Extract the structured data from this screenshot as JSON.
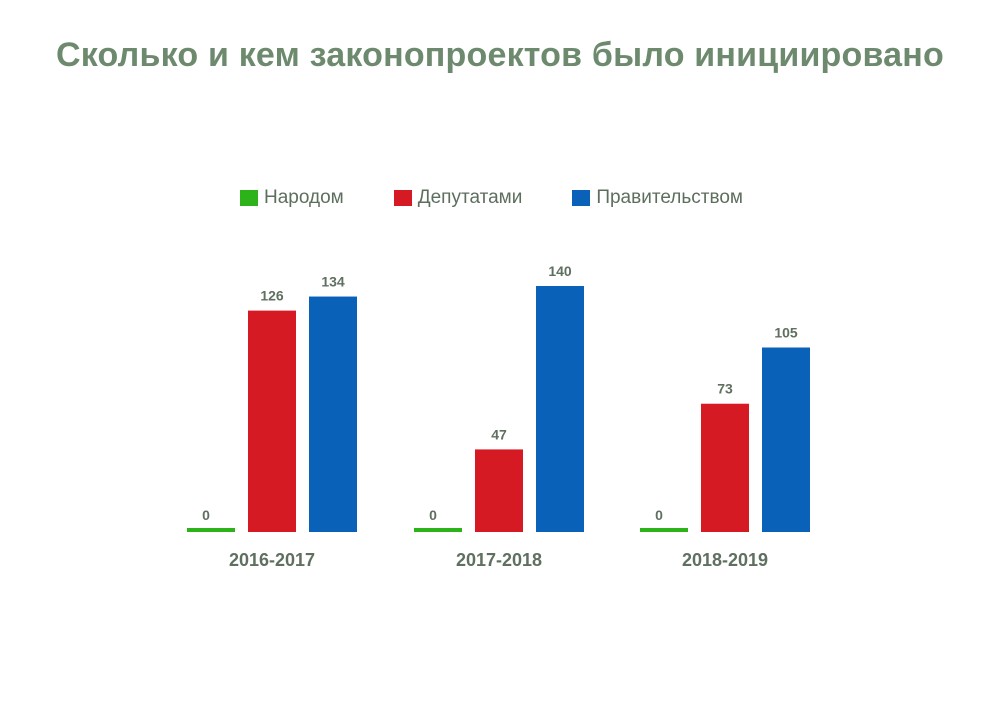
{
  "chart_data": {
    "type": "bar",
    "title": "Сколько и кем законопроектов было инициировано",
    "categories": [
      "2016-2017",
      "2017-2018",
      "2018-2019"
    ],
    "series": [
      {
        "name": "Народом",
        "values": [
          0,
          0,
          0
        ],
        "color": "#2db31a"
      },
      {
        "name": "Депутатами",
        "values": [
          126,
          47,
          73
        ],
        "color": "#d51a24"
      },
      {
        "name": "Правительством",
        "values": [
          134,
          140,
          105
        ],
        "color": "#0a62b8"
      }
    ],
    "ylim": [
      0,
      140
    ],
    "grid": false,
    "legend_position": "top"
  }
}
